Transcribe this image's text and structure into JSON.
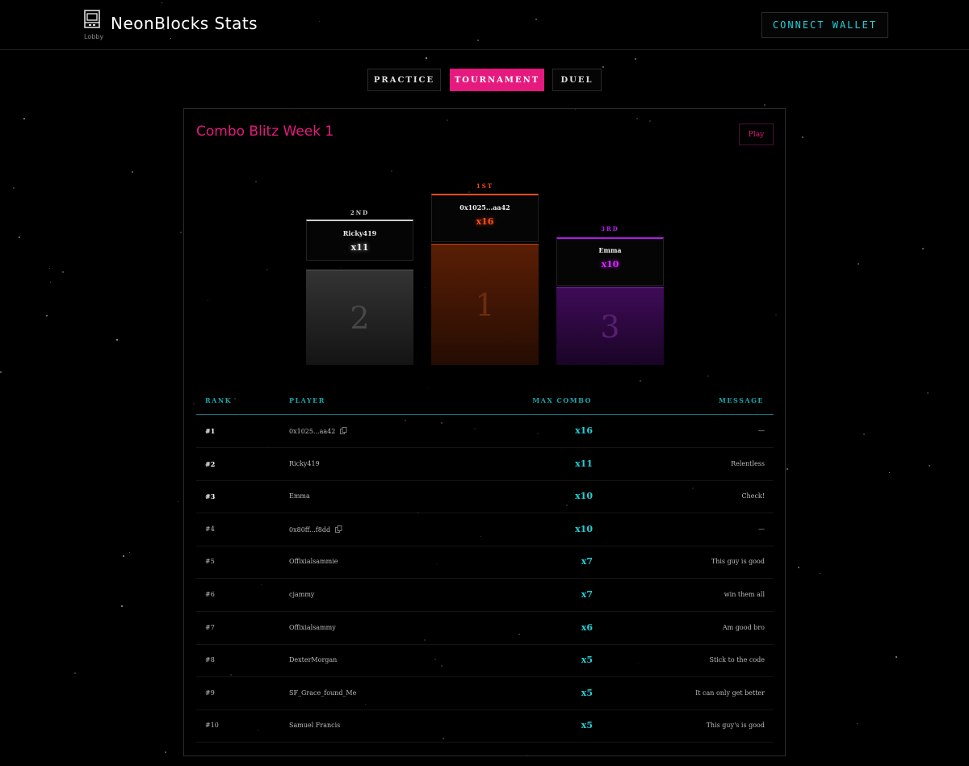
{
  "header": {
    "app_title": "NeonBlocks Stats",
    "lobby_label": "Lobby",
    "connect_wallet": "CONNECT WALLET",
    "logo_icon": "arcade-cabinet-icon"
  },
  "tabs": [
    {
      "label": "PRACTICE",
      "active": false
    },
    {
      "label": "TOURNAMENT",
      "active": true
    },
    {
      "label": "DUEL",
      "active": false
    }
  ],
  "tournament": {
    "title": "Combo Blitz Week 1",
    "play_label": "Play"
  },
  "podium": {
    "second": {
      "place": "2ND",
      "name": "Ricky419",
      "score": "x11",
      "number": "2",
      "color": "#e0e0e0"
    },
    "first": {
      "place": "1ST",
      "name": "0x1025...aa42",
      "score": "x16",
      "number": "1",
      "color": "#ff4d1a"
    },
    "third": {
      "place": "3RD",
      "name": "Emma",
      "score": "x10",
      "number": "3",
      "color": "#c21bff"
    }
  },
  "table": {
    "headers": {
      "rank": "RANK",
      "player": "PLAYER",
      "combo": "MAX COMBO",
      "message": "MESSAGE"
    },
    "rows": [
      {
        "rank": "#1",
        "player": "0x1025...aa42",
        "copy": true,
        "combo": "x16",
        "message": "—"
      },
      {
        "rank": "#2",
        "player": "Ricky419",
        "copy": false,
        "combo": "x11",
        "message": "Relentless"
      },
      {
        "rank": "#3",
        "player": "Emma",
        "copy": false,
        "combo": "x10",
        "message": "Check!"
      },
      {
        "rank": "#4",
        "player": "0x80ff...f8dd",
        "copy": true,
        "combo": "x10",
        "message": "—"
      },
      {
        "rank": "#5",
        "player": "Offixialsammie",
        "copy": false,
        "combo": "x7",
        "message": "This guy is good"
      },
      {
        "rank": "#6",
        "player": "cjammy",
        "copy": false,
        "combo": "x7",
        "message": "win them all"
      },
      {
        "rank": "#7",
        "player": "Offixialsammy",
        "copy": false,
        "combo": "x6",
        "message": "Am good bro"
      },
      {
        "rank": "#8",
        "player": "DexterMorgan",
        "copy": false,
        "combo": "x5",
        "message": "Stick to the code"
      },
      {
        "rank": "#9",
        "player": "SF_Grace_found_Me",
        "copy": false,
        "combo": "x5",
        "message": "It can only get better"
      },
      {
        "rank": "#10",
        "player": "Samuel Francis",
        "copy": false,
        "combo": "x5",
        "message": "This guy's is good"
      }
    ]
  }
}
